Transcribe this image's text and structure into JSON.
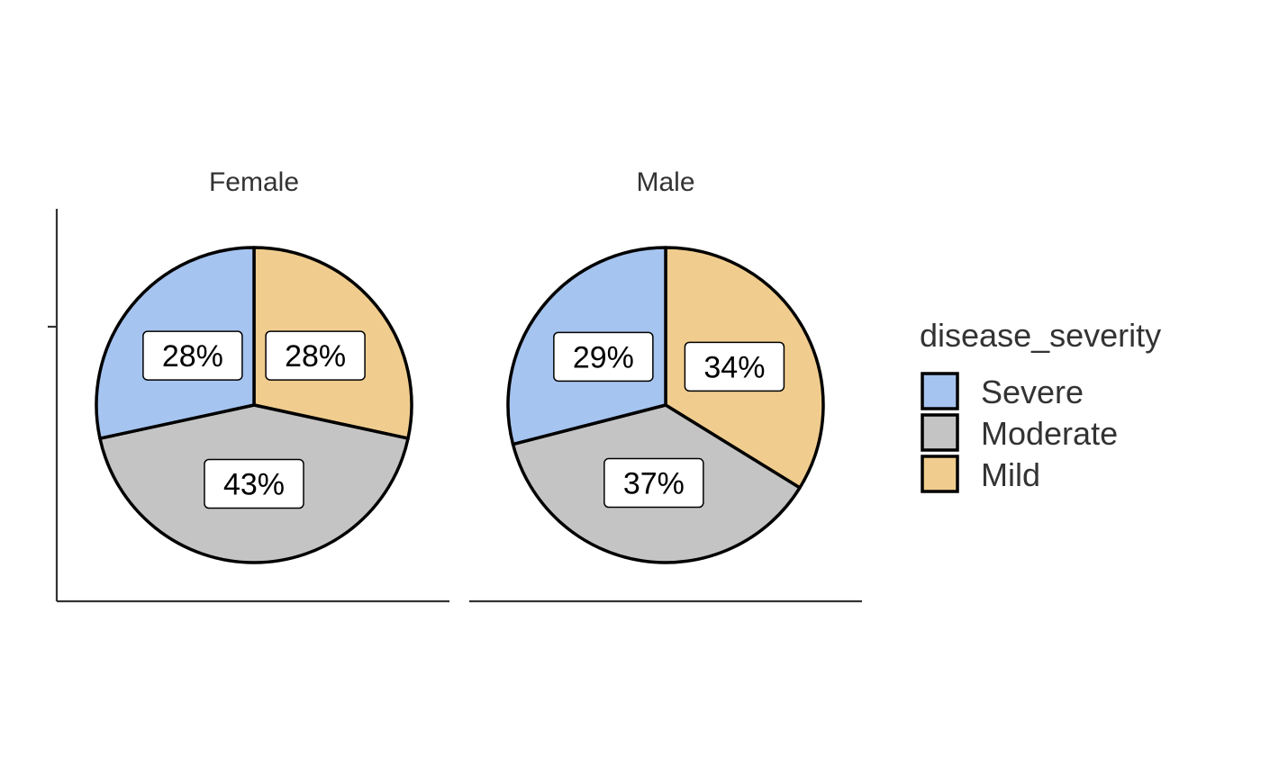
{
  "chart_data": {
    "type": "pie",
    "facets": [
      {
        "title": "Female",
        "slices": [
          {
            "category": "Mild",
            "value": 28.4,
            "label": "28%"
          },
          {
            "category": "Moderate",
            "value": 43.2,
            "label": "43%"
          },
          {
            "category": "Severe",
            "value": 28.4,
            "label": "28%"
          }
        ]
      },
      {
        "title": "Male",
        "slices": [
          {
            "category": "Mild",
            "value": 33.8,
            "label": "34%"
          },
          {
            "category": "Moderate",
            "value": 37.2,
            "label": "37%"
          },
          {
            "category": "Severe",
            "value": 29.0,
            "label": "29%"
          }
        ]
      }
    ],
    "legend": {
      "title": "disease_severity",
      "position": "right",
      "entries": [
        {
          "name": "Severe",
          "color": "#A6C4F0"
        },
        {
          "name": "Moderate",
          "color": "#C4C4C4"
        },
        {
          "name": "Mild",
          "color": "#F0CD8E"
        }
      ]
    },
    "colors": {
      "Severe": "#A6C4F0",
      "Moderate": "#C4C4C4",
      "Mild": "#F0CD8E"
    },
    "grid": false
  }
}
